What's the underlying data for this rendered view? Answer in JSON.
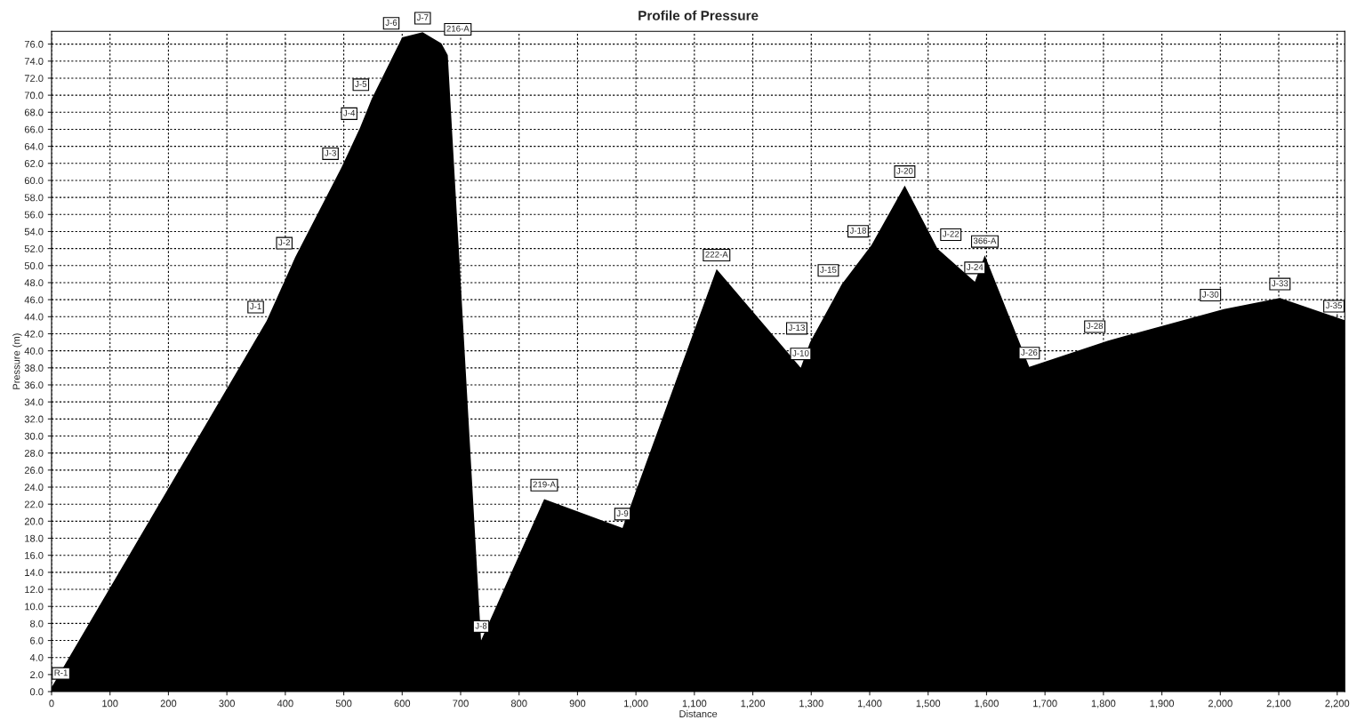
{
  "chart_data": {
    "type": "area",
    "title": "Profile of Pressure",
    "xlabel": "Distance",
    "ylabel": "Pressure (m)",
    "x": [
      0,
      368,
      417,
      496,
      528,
      548,
      600,
      635,
      667,
      678,
      735,
      843,
      977,
      1138,
      1282,
      1298,
      1352,
      1403,
      1460,
      1516,
      1580,
      1597,
      1673,
      1808,
      2006,
      2102,
      2213
    ],
    "series": [
      {
        "color": "#000000",
        "values": [
          0.5,
          43.5,
          51.0,
          61.5,
          66.2,
          69.6,
          76.8,
          77.4,
          76.1,
          74.7,
          6.0,
          22.6,
          19.2,
          49.6,
          38.0,
          41.0,
          47.8,
          52.4,
          59.4,
          52.0,
          48.1,
          51.2,
          38.1,
          41.2,
          44.9,
          46.2,
          43.6
        ]
      }
    ],
    "annotations": [
      {
        "text": "R-1",
        "x": 0,
        "y": 0.5
      },
      {
        "text": "J-1",
        "x": 368,
        "y": 43.5
      },
      {
        "text": "J-2",
        "x": 417,
        "y": 51.0
      },
      {
        "text": "J-3",
        "x": 496,
        "y": 61.5
      },
      {
        "text": "J-4",
        "x": 528,
        "y": 66.2
      },
      {
        "text": "J-5",
        "x": 548,
        "y": 69.6
      },
      {
        "text": "J-6",
        "x": 600,
        "y": 76.8
      },
      {
        "text": "J-7",
        "x": 635,
        "y": 77.4
      },
      {
        "text": "216-A",
        "x": 667,
        "y": 76.1
      },
      {
        "text": "J-8",
        "x": 735,
        "y": 6.0
      },
      {
        "text": "219-A",
        "x": 843,
        "y": 22.6
      },
      {
        "text": "J-9",
        "x": 977,
        "y": 19.2
      },
      {
        "text": "222-A",
        "x": 1138,
        "y": 49.6
      },
      {
        "text": "J-10",
        "x": 1282,
        "y": 38.0
      },
      {
        "text": "J-13",
        "x": 1298,
        "y": 41.0
      },
      {
        "text": "J-15",
        "x": 1352,
        "y": 47.8
      },
      {
        "text": "J-18",
        "x": 1403,
        "y": 52.4
      },
      {
        "text": "J-20",
        "x": 1460,
        "y": 59.4
      },
      {
        "text": "J-22",
        "x": 1516,
        "y": 52.0
      },
      {
        "text": "J-24",
        "x": 1580,
        "y": 48.1
      },
      {
        "text": "366-A",
        "x": 1597,
        "y": 51.2
      },
      {
        "text": "J-26",
        "x": 1673,
        "y": 38.1
      },
      {
        "text": "J-28",
        "x": 1808,
        "y": 41.2
      },
      {
        "text": "J-30",
        "x": 2006,
        "y": 44.9
      },
      {
        "text": "J-33",
        "x": 2102,
        "y": 46.2
      },
      {
        "text": "J-35",
        "x": 2213,
        "y": 43.6
      }
    ],
    "xlim": [
      0,
      2213
    ],
    "ylim": [
      0,
      77.5
    ],
    "xticks": [
      0,
      100,
      200,
      300,
      400,
      500,
      600,
      700,
      800,
      900,
      {
        "value": 1000,
        "label": "1,000"
      },
      {
        "value": 1100,
        "label": "1,100"
      },
      {
        "value": 1200,
        "label": "1,200"
      },
      {
        "value": 1300,
        "label": "1,300"
      },
      {
        "value": 1400,
        "label": "1,400"
      },
      {
        "value": 1500,
        "label": "1,500"
      },
      {
        "value": 1600,
        "label": "1,600"
      },
      {
        "value": 1700,
        "label": "1,700"
      },
      {
        "value": 1800,
        "label": "1,800"
      },
      {
        "value": 1900,
        "label": "1,900"
      },
      {
        "value": 2000,
        "label": "2,000"
      },
      {
        "value": 2100,
        "label": "2,100"
      },
      {
        "value": 2200,
        "label": "2,200"
      }
    ],
    "yticks": [
      {
        "value": 0,
        "label": "0.0"
      },
      {
        "value": 2,
        "label": "2.0"
      },
      {
        "value": 4,
        "label": "4.0"
      },
      {
        "value": 6,
        "label": "6.0"
      },
      {
        "value": 8,
        "label": "8.0"
      },
      {
        "value": 10,
        "label": "10.0"
      },
      {
        "value": 12,
        "label": "12.0"
      },
      {
        "value": 14,
        "label": "14.0"
      },
      {
        "value": 16,
        "label": "16.0"
      },
      {
        "value": 18,
        "label": "18.0"
      },
      {
        "value": 20,
        "label": "20.0"
      },
      {
        "value": 22,
        "label": "22.0"
      },
      {
        "value": 24,
        "label": "24.0"
      },
      {
        "value": 26,
        "label": "26.0"
      },
      {
        "value": 28,
        "label": "28.0"
      },
      {
        "value": 30,
        "label": "30.0"
      },
      {
        "value": 32,
        "label": "32.0"
      },
      {
        "value": 34,
        "label": "34.0"
      },
      {
        "value": 36,
        "label": "36.0"
      },
      {
        "value": 38,
        "label": "38.0"
      },
      {
        "value": 40,
        "label": "40.0"
      },
      {
        "value": 42,
        "label": "42.0"
      },
      {
        "value": 44,
        "label": "44.0"
      },
      {
        "value": 46,
        "label": "46.0"
      },
      {
        "value": 48,
        "label": "48.0"
      },
      {
        "value": 50,
        "label": "50.0"
      },
      {
        "value": 52,
        "label": "52.0"
      },
      {
        "value": 54,
        "label": "54.0"
      },
      {
        "value": 56,
        "label": "56.0"
      },
      {
        "value": 58,
        "label": "58.0"
      },
      {
        "value": 60,
        "label": "60.0"
      },
      {
        "value": 62,
        "label": "62.0"
      },
      {
        "value": 64,
        "label": "64.0"
      },
      {
        "value": 66,
        "label": "66.0"
      },
      {
        "value": 68,
        "label": "68.0"
      },
      {
        "value": 70,
        "label": "70.0"
      },
      {
        "value": 72,
        "label": "72.0"
      },
      {
        "value": 74,
        "label": "74.0"
      },
      {
        "value": 76,
        "label": "76.0"
      }
    ],
    "grid": true
  }
}
